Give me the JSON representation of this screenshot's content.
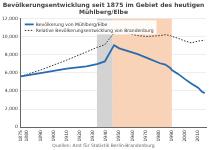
{
  "chart_data": {
    "type": "line",
    "title": [
      "Bevölkerungsentwicklung seit 1875 im Gebiet des heutigen",
      "Mühlberg/Elbe"
    ],
    "source": "Quellen: Amt für Statistik Berlin-Brandenburg",
    "x": [
      1875,
      1890,
      1910,
      1925,
      1933,
      1939,
      1946,
      1950,
      1964,
      1971,
      1981,
      1985,
      1989,
      1990,
      1995,
      2000,
      2005,
      2010,
      2013,
      2015
    ],
    "series": [
      {
        "name": "Bevölkerung von Mühlberg/Elbe",
        "color": "#2a6bb0",
        "line_style": "solid",
        "values": [
          5600,
          5950,
          6450,
          6700,
          6950,
          7250,
          9050,
          8700,
          8050,
          7650,
          7050,
          6900,
          6500,
          6300,
          5850,
          5300,
          4800,
          4350,
          3900,
          3750
        ]
      },
      {
        "name": "Relative Bevölkerungsentwicklung von Brandenburg",
        "color": "#333333",
        "line_style": "dotted",
        "values": [
          5600,
          6300,
          7400,
          8300,
          8800,
          9100,
          10400,
          10600,
          10100,
          10000,
          10100,
          10200,
          10100,
          10000,
          9800,
          9500,
          9300,
          9500,
          9550,
          9600
        ]
      }
    ],
    "shaded_periods": [
      {
        "from": 1933,
        "to": 1945,
        "color": "#d3d3d3"
      },
      {
        "from": 1945,
        "to": 1990,
        "color": "#f9d3b8"
      }
    ],
    "xlim": [
      1875,
      2016
    ],
    "xticks": [
      1875,
      1880,
      1890,
      1900,
      1910,
      1920,
      1930,
      1940,
      1950,
      1960,
      1970,
      1980,
      1990,
      2000,
      2010
    ],
    "ylim": [
      0,
      12000
    ],
    "yticks": [
      0,
      {
        "value": 2000,
        "label": "2,000"
      },
      {
        "value": 4000,
        "label": "4,000"
      },
      {
        "value": 6000,
        "label": "6,000"
      },
      {
        "value": 8000,
        "label": "8,000"
      },
      {
        "value": 10000,
        "label": "10,000"
      },
      {
        "value": 12000,
        "label": "12,000"
      }
    ],
    "grid": true,
    "legend": "upper left"
  }
}
